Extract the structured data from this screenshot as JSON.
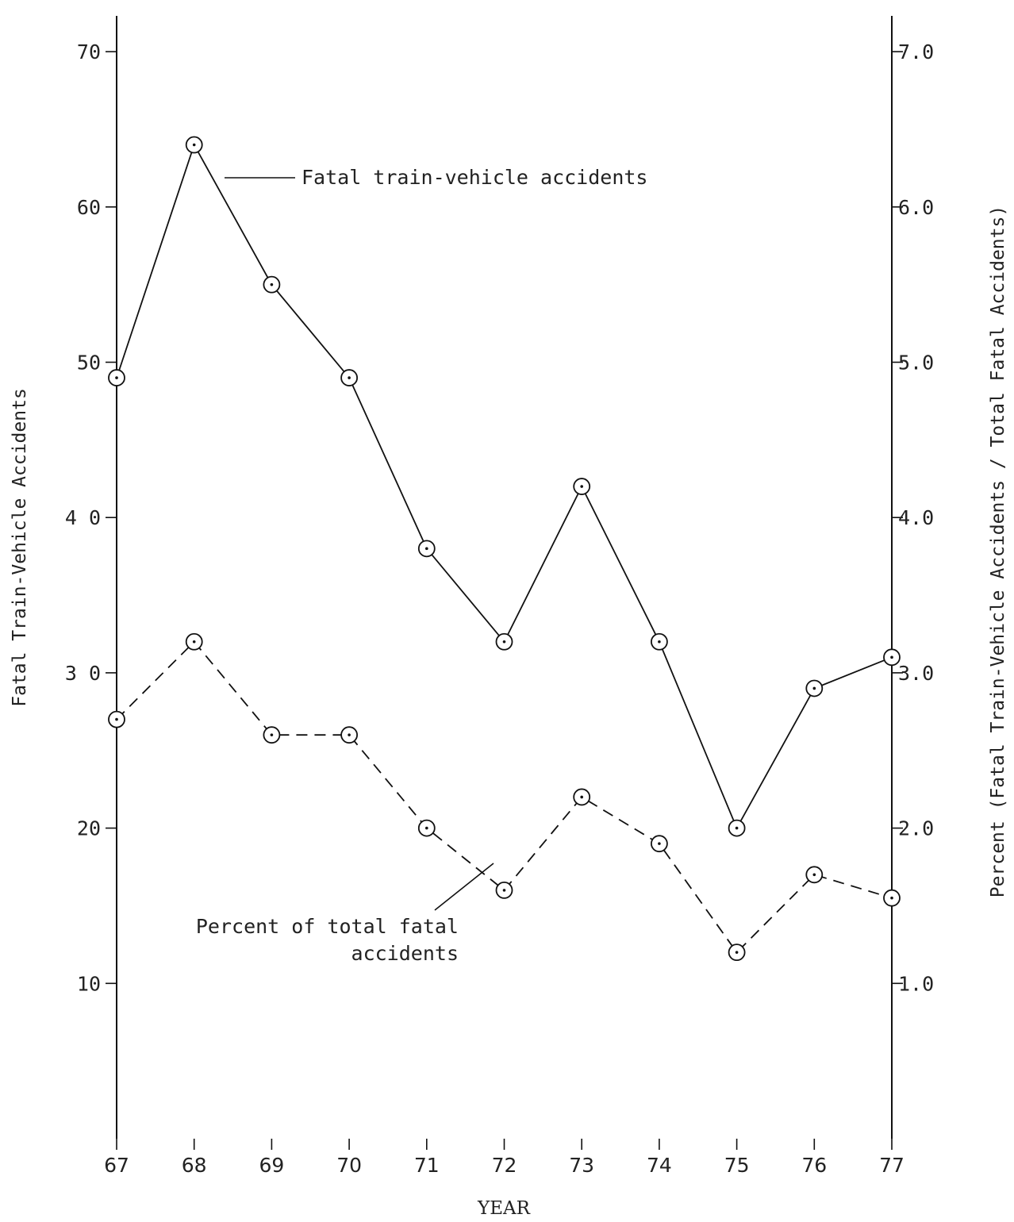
{
  "chart_data": {
    "type": "line",
    "xlabel": "YEAR",
    "ylabel": "Fatal Train-Vehicle Accidents",
    "y2label": "Percent (Fatal Train-Vehicle Accidents / Total Fatal Accidents)",
    "x": [
      67,
      68,
      69,
      70,
      71,
      72,
      73,
      74,
      75,
      76,
      77
    ],
    "x_tick_labels": [
      "67",
      "68",
      "69",
      "70",
      "71",
      "72",
      "73",
      "74",
      "75",
      "76",
      "77"
    ],
    "xlim": [
      67,
      77
    ],
    "ylim": [
      0,
      72
    ],
    "y2lim": [
      0,
      7.2
    ],
    "y_ticks": [
      10,
      20,
      30,
      40,
      50,
      60,
      70
    ],
    "y_tick_labels": [
      "10",
      "20",
      "3 0",
      "4 0",
      "50",
      "60",
      "70"
    ],
    "y2_ticks": [
      1,
      2,
      3,
      4,
      5,
      6,
      7
    ],
    "y2_tick_labels": [
      "1.0",
      "2.0",
      "3.0",
      "4.0",
      "5.0",
      "6.0",
      "7.0"
    ],
    "grid": false,
    "series": [
      {
        "name": "Fatal train-vehicle accidents",
        "axis": "left",
        "style": "solid",
        "values": [
          49,
          64,
          55,
          49,
          38,
          32,
          42,
          32,
          20,
          29,
          31
        ]
      },
      {
        "name": "Percent of total fatal accidents",
        "axis": "right",
        "style": "dashed",
        "values": [
          2.7,
          3.2,
          2.6,
          2.6,
          2.0,
          1.6,
          2.2,
          1.9,
          1.2,
          1.7,
          1.55
        ]
      }
    ],
    "annotations": [
      {
        "text": "Fatal train-vehicle accidents",
        "series": 0
      },
      {
        "lines": [
          "Percent of total fatal",
          "accidents"
        ],
        "series": 1
      }
    ]
  }
}
